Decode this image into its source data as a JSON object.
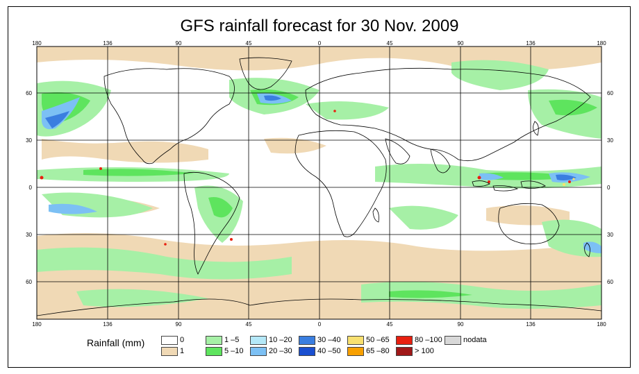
{
  "title": "GFS rainfall forecast for 30 Nov. 2009",
  "map": {
    "lon_labels": [
      "180",
      "136",
      "90",
      "45",
      "0",
      "45",
      "90",
      "136",
      "180"
    ],
    "lat_labels": [
      "60",
      "30",
      "0",
      "30",
      "60"
    ],
    "colors": {
      "ocean": "#ffffff",
      "coast": "#000000",
      "grid": "#000000"
    }
  },
  "legend": {
    "label": "Rainfall (mm)",
    "items": [
      {
        "label": "0",
        "color": "#ffffff"
      },
      {
        "label": "1",
        "color": "#f0d9b5"
      },
      {
        "label": "1 –5",
        "color": "#a6f0a6"
      },
      {
        "label": "5 –10",
        "color": "#5ee45e"
      },
      {
        "label": "10 –20",
        "color": "#b4e8f8"
      },
      {
        "label": "20 –30",
        "color": "#7cc0f4"
      },
      {
        "label": "30 –40",
        "color": "#3a7ee0"
      },
      {
        "label": "40 –50",
        "color": "#1a4fd0"
      },
      {
        "label": "50 –65",
        "color": "#f8e070"
      },
      {
        "label": "65 –80",
        "color": "#f8a000"
      },
      {
        "label": "80 –100",
        "color": "#e82010"
      },
      {
        "label": "> 100",
        "color": "#a01818"
      },
      {
        "label": "nodata",
        "color": "#d8d8d8"
      }
    ]
  }
}
